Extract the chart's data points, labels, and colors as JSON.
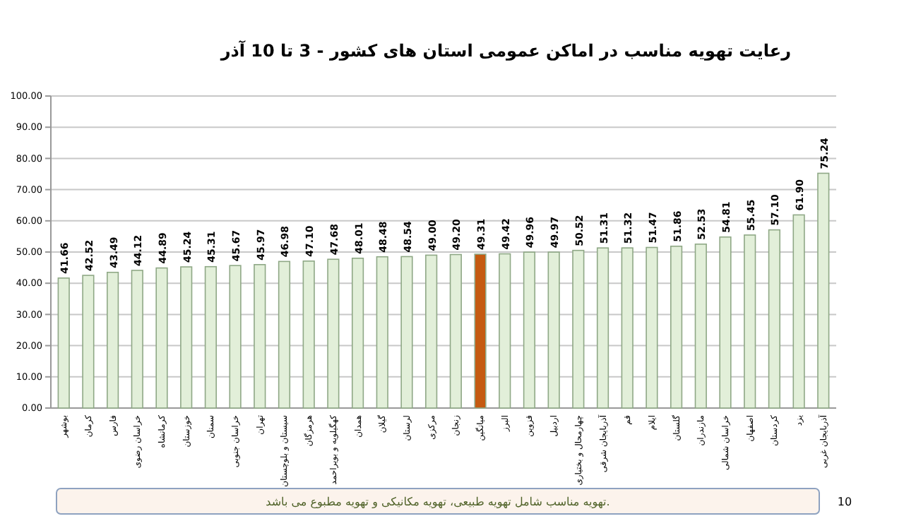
{
  "chart_data": {
    "type": "bar",
    "title": "رعایت تهویه مناسب در اماکن عمومی استان های کشور  - 3 تا 10 آذر",
    "categories": [
      "بوشهر",
      "کرمان",
      "فارس",
      "خراسان رضوی",
      "کرمانشاه",
      "خوزستان",
      "سمنان",
      "خراسان جنوبی",
      "تهران",
      "سیستان و بلوچستان",
      "هرمزگان",
      "کهگیلویه و بویراحمد",
      "همدان",
      "گیلان",
      "لرستان",
      "مرکزی",
      "زنجان",
      "میانگین",
      "البرز",
      "قزوین",
      "اردبیل",
      "چهارمحال و بختیاری",
      "آذربایجان شرقی",
      "قم",
      "ایلام",
      "گلستان",
      "مازندران",
      "خراسان شمالی",
      "اصفهان",
      "کردستان",
      "یزد",
      "آذربایجان غربی"
    ],
    "values": [
      41.66,
      42.52,
      43.49,
      44.12,
      44.89,
      45.24,
      45.31,
      45.67,
      45.97,
      46.98,
      47.1,
      47.68,
      48.01,
      48.48,
      48.54,
      49.0,
      49.2,
      49.31,
      49.42,
      49.96,
      49.97,
      50.52,
      51.31,
      51.32,
      51.47,
      51.86,
      52.53,
      54.81,
      55.45,
      57.1,
      61.9,
      75.24
    ],
    "value_labels": [
      "41.66",
      "42.52",
      "43.49",
      "44.12",
      "44.89",
      "45.24",
      "45.31",
      "45.67",
      "45.97",
      "46.98",
      "47.10",
      "47.68",
      "48.01",
      "48.48",
      "48.54",
      "49.00",
      "49.20",
      "49.31",
      "49.42",
      "49.96",
      "49.97",
      "50.52",
      "51.31",
      "51.32",
      "51.47",
      "51.86",
      "52.53",
      "54.81",
      "55.45",
      "57.10",
      "61.90",
      "75.24"
    ],
    "colors": [
      "#e2efd9",
      "#e2efd9",
      "#e2efd9",
      "#e2efd9",
      "#e2efd9",
      "#e2efd9",
      "#e2efd9",
      "#e2efd9",
      "#e2efd9",
      "#e2efd9",
      "#e2efd9",
      "#e2efd9",
      "#e2efd9",
      "#e2efd9",
      "#e2efd9",
      "#e2efd9",
      "#e2efd9",
      "#c55a11",
      "#e2efd9",
      "#e2efd9",
      "#e2efd9",
      "#e2efd9",
      "#e2efd9",
      "#e2efd9",
      "#e2efd9",
      "#e2efd9",
      "#e2efd9",
      "#e2efd9",
      "#e2efd9",
      "#e2efd9",
      "#e2efd9",
      "#e2efd9"
    ],
    "ylim": [
      0,
      100
    ],
    "yticks": [
      {
        "value": 0,
        "label": "0.00"
      },
      {
        "value": 10,
        "label": "10.00"
      },
      {
        "value": 20,
        "label": "20.00"
      },
      {
        "value": 30,
        "label": "30.00"
      },
      {
        "value": 40,
        "label": "40.00"
      },
      {
        "value": 50,
        "label": "50.00"
      },
      {
        "value": 60,
        "label": "60.00"
      },
      {
        "value": 70,
        "label": "70.00"
      },
      {
        "value": 80,
        "label": "80.00"
      },
      {
        "value": 90,
        "label": "90.00"
      },
      {
        "value": 100,
        "label": "100.00"
      }
    ],
    "grid": "y",
    "annotations": [
      "تهویه مناسب شامل تهویه طبیعی، تهویه مکانیکی و تهویه مطبوع می باشد.",
      "10"
    ]
  }
}
